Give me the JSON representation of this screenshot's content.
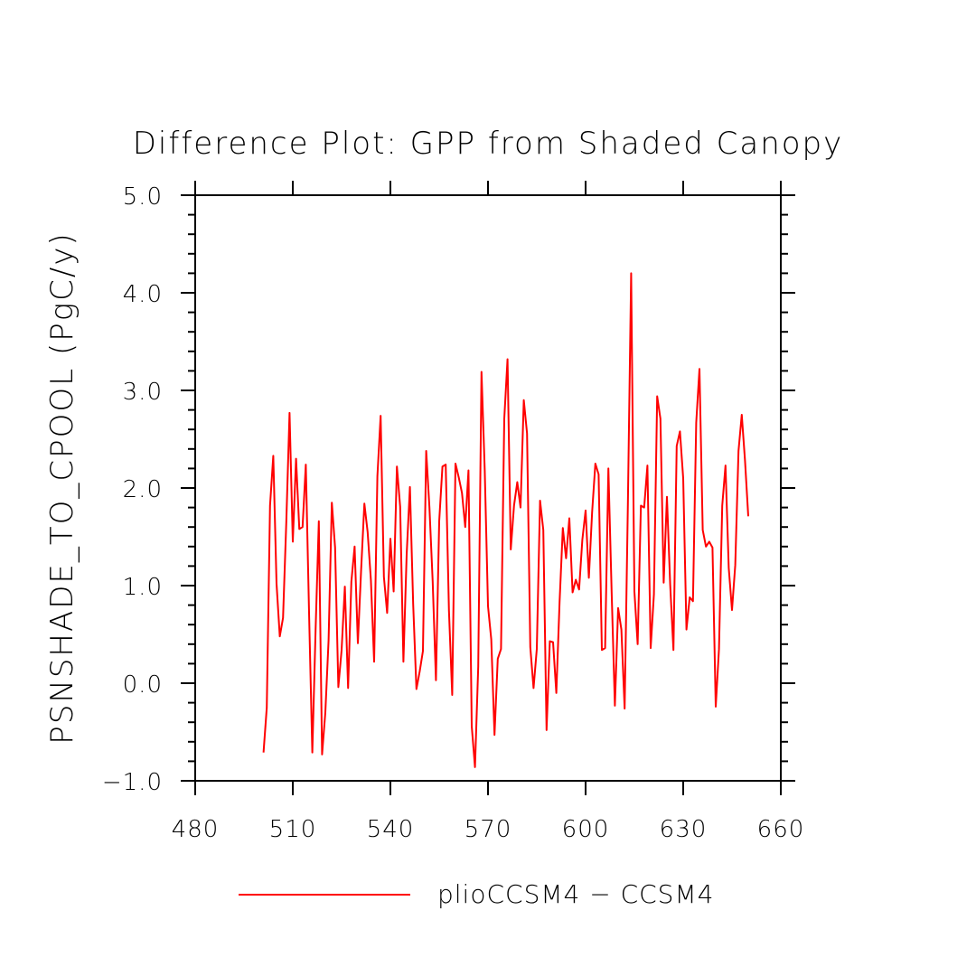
{
  "chart_data": {
    "type": "line",
    "title": "Difference Plot: GPP from Shaded Canopy",
    "xlabel": "",
    "ylabel": "PSNSHADE_TO_CPOOL  (PgC/y)",
    "xlim": [
      480,
      660
    ],
    "ylim": [
      -1.0,
      5.0
    ],
    "xticks": [
      480,
      510,
      540,
      570,
      600,
      630,
      660
    ],
    "xtick_labels": [
      "480",
      "510",
      "540",
      "570",
      "600",
      "630",
      "660"
    ],
    "yticks": [
      -1.0,
      0.0,
      1.0,
      2.0,
      3.0,
      4.0,
      5.0
    ],
    "ytick_labels": [
      "−1.0",
      "0.0",
      "1.0",
      "2.0",
      "3.0",
      "4.0",
      "5.0"
    ],
    "legend_position": "bottom",
    "series": [
      {
        "name": "plioCCSM4 − CCSM4",
        "color": "#ff0000",
        "x": [
          501,
          502,
          503,
          504,
          505,
          506,
          507,
          508,
          509,
          510,
          511,
          512,
          513,
          514,
          515,
          516,
          517,
          518,
          519,
          520,
          521,
          522,
          523,
          524,
          525,
          526,
          527,
          528,
          529,
          530,
          531,
          532,
          533,
          534,
          535,
          536,
          537,
          538,
          539,
          540,
          541,
          542,
          543,
          544,
          545,
          546,
          547,
          548,
          549,
          550,
          551,
          552,
          553,
          554,
          555,
          556,
          557,
          558,
          559,
          560,
          561,
          562,
          563,
          564,
          565,
          566,
          567,
          568,
          569,
          570,
          571,
          572,
          573,
          574,
          575,
          576,
          577,
          578,
          579,
          580,
          581,
          582,
          583,
          584,
          585,
          586,
          587,
          588,
          589,
          590,
          591,
          592,
          593,
          594,
          595,
          596,
          597,
          598,
          599,
          600,
          601,
          602,
          603,
          604,
          605,
          606,
          607,
          608,
          609,
          610,
          611,
          612,
          613,
          614,
          615,
          616,
          617,
          618,
          619,
          620,
          621,
          622,
          623,
          624,
          625,
          626,
          627,
          628,
          629,
          630,
          631,
          632,
          633,
          634,
          635,
          636,
          637,
          638,
          639,
          640,
          641,
          642,
          643,
          644,
          645,
          646,
          647,
          648,
          649,
          650
        ],
        "values": [
          -0.71,
          -0.25,
          1.82,
          2.33,
          1.02,
          0.48,
          0.67,
          1.65,
          2.77,
          1.45,
          2.3,
          1.58,
          1.6,
          2.24,
          0.72,
          -0.71,
          0.54,
          1.66,
          -0.73,
          -0.3,
          0.44,
          1.85,
          1.39,
          -0.04,
          0.34,
          0.99,
          -0.05,
          1.04,
          1.4,
          0.41,
          1.16,
          1.84,
          1.55,
          1.06,
          0.22,
          2.12,
          2.74,
          1.09,
          0.72,
          1.48,
          0.94,
          2.22,
          1.81,
          0.22,
          1.32,
          2.01,
          0.81,
          -0.06,
          0.12,
          0.33,
          2.38,
          1.8,
          1.04,
          0.03,
          1.66,
          2.22,
          2.24,
          0.74,
          -0.12,
          2.25,
          2.11,
          1.95,
          1.6,
          2.18,
          -0.44,
          -0.86,
          0.17,
          3.19,
          2.18,
          0.79,
          0.45,
          -0.53,
          0.25,
          0.35,
          2.71,
          3.32,
          1.37,
          1.82,
          2.06,
          1.8,
          2.9,
          2.56,
          0.37,
          -0.05,
          0.35,
          1.87,
          1.57,
          -0.48,
          0.43,
          0.42,
          -0.1,
          0.83,
          1.59,
          1.28,
          1.69,
          0.93,
          1.06,
          0.96,
          1.47,
          1.77,
          1.08,
          1.75,
          2.25,
          2.14,
          0.34,
          0.36,
          2.2,
          0.94,
          -0.23,
          0.77,
          0.55,
          -0.26,
          1.84,
          4.2,
          0.94,
          0.4,
          1.82,
          1.8,
          2.23,
          0.36,
          0.91,
          2.94,
          2.71,
          1.03,
          1.91,
          1.01,
          0.34,
          2.43,
          2.58,
          2.1,
          0.55,
          0.88,
          0.84,
          2.67,
          3.22,
          1.57,
          1.4,
          1.45,
          1.39,
          -0.24,
          0.35,
          1.82,
          2.23,
          1.18,
          0.75,
          1.21,
          2.38,
          2.75,
          2.28,
          1.71
        ]
      }
    ]
  }
}
